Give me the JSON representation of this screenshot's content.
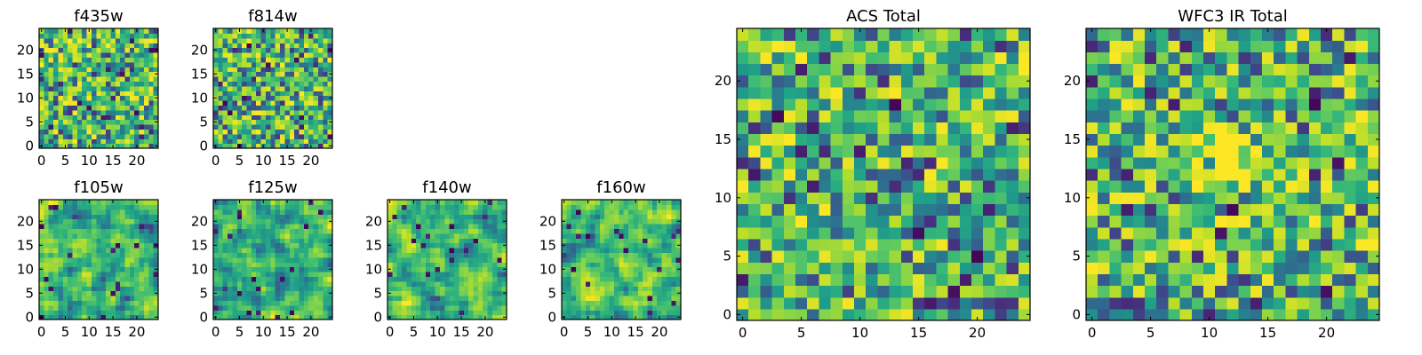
{
  "chart_data": [
    {
      "type": "heatmap",
      "title": "f435w",
      "colormap": "viridis",
      "grid_size": [
        25,
        25
      ],
      "xlim": [
        0,
        25
      ],
      "ylim": [
        0,
        25
      ],
      "xticks": [
        0,
        5,
        10,
        15,
        20
      ],
      "yticks": [
        0,
        5,
        10,
        15,
        20
      ],
      "grid": false
    },
    {
      "type": "heatmap",
      "title": "f814w",
      "colormap": "viridis",
      "grid_size": [
        25,
        25
      ],
      "xlim": [
        0,
        25
      ],
      "ylim": [
        0,
        25
      ],
      "xticks": [
        0,
        5,
        10,
        15,
        20
      ],
      "yticks": [
        0,
        5,
        10,
        15,
        20
      ],
      "grid": false
    },
    {
      "type": "heatmap",
      "title": "f105w",
      "colormap": "viridis",
      "grid_size": [
        25,
        25
      ],
      "xlim": [
        0,
        25
      ],
      "ylim": [
        0,
        25
      ],
      "xticks": [
        0,
        5,
        10,
        15,
        20
      ],
      "yticks": [
        0,
        5,
        10,
        15,
        20
      ],
      "grid": false
    },
    {
      "type": "heatmap",
      "title": "f125w",
      "colormap": "viridis",
      "grid_size": [
        25,
        25
      ],
      "xlim": [
        0,
        25
      ],
      "ylim": [
        0,
        25
      ],
      "xticks": [
        0,
        5,
        10,
        15,
        20
      ],
      "yticks": [
        0,
        5,
        10,
        15,
        20
      ],
      "grid": false
    },
    {
      "type": "heatmap",
      "title": "f140w",
      "colormap": "viridis",
      "grid_size": [
        25,
        25
      ],
      "xlim": [
        0,
        25
      ],
      "ylim": [
        0,
        25
      ],
      "xticks": [
        0,
        5,
        10,
        15,
        20
      ],
      "yticks": [
        0,
        5,
        10,
        15,
        20
      ],
      "grid": false
    },
    {
      "type": "heatmap",
      "title": "f160w",
      "colormap": "viridis",
      "grid_size": [
        25,
        25
      ],
      "xlim": [
        0,
        25
      ],
      "ylim": [
        0,
        25
      ],
      "xticks": [
        0,
        5,
        10,
        15,
        20
      ],
      "yticks": [
        0,
        5,
        10,
        15,
        20
      ],
      "grid": false
    },
    {
      "type": "heatmap",
      "title": "ACS Total",
      "colormap": "viridis",
      "grid_size": [
        25,
        25
      ],
      "xlim": [
        0,
        25
      ],
      "ylim": [
        0,
        25
      ],
      "xticks": [
        0,
        5,
        10,
        15,
        20
      ],
      "yticks": [
        0,
        5,
        10,
        15,
        20
      ],
      "grid": false
    },
    {
      "type": "heatmap",
      "title": "WFC3 IR Total",
      "colormap": "viridis",
      "grid_size": [
        25,
        25
      ],
      "xlim": [
        0,
        25
      ],
      "ylim": [
        0,
        25
      ],
      "xticks": [
        0,
        5,
        10,
        15,
        20
      ],
      "yticks": [
        0,
        5,
        10,
        15,
        20
      ],
      "grid": false
    }
  ]
}
